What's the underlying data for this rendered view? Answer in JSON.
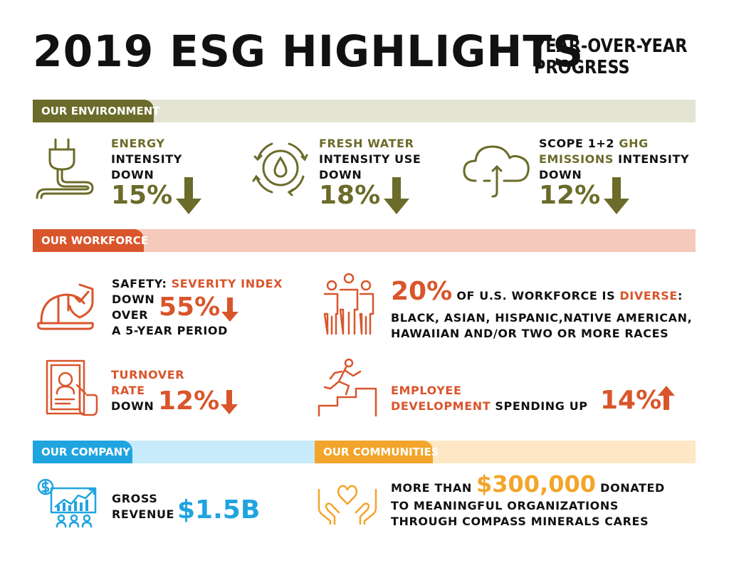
{
  "header": {
    "title": "2019 ESG HIGHLIGHTS",
    "subtitle_line1": "YEAR-OVER-YEAR",
    "subtitle_line2": "PROGRESS"
  },
  "colors": {
    "environment": "#6b6b2a",
    "environment_light": "#e3e4d2",
    "workforce": "#d9552b",
    "workforce_light": "#f5c9bb",
    "company": "#1fa4e0",
    "company_light": "#c7ebfa",
    "communities": "#f2a52a",
    "communities_light": "#fde7c4"
  },
  "environment": {
    "label": "OUR ENVIRONMENT",
    "energy": {
      "line1": "ENERGY",
      "line2": "INTENSITY",
      "line3": "DOWN",
      "value": "15%",
      "icon": "plug-icon"
    },
    "water": {
      "line1": "FRESH WATER",
      "line2": "INTENSITY USE",
      "line3": "DOWN",
      "value": "18%",
      "icon": "water-cycle-icon"
    },
    "ghg": {
      "line1a": "SCOPE 1+2 ",
      "line1b": "GHG",
      "line2a": "EMISSIONS",
      "line2b": " INTENSITY",
      "line3": "DOWN",
      "value": "12%",
      "icon": "cloud-icon"
    }
  },
  "workforce": {
    "label": "OUR WORKFORCE",
    "safety": {
      "line1a": "SAFETY: ",
      "line1b": "SEVERITY INDEX",
      "line2": "DOWN",
      "line3": "OVER",
      "line4": "A 5-YEAR PERIOD",
      "value": "55%",
      "icon": "hardhat-icon"
    },
    "diverse": {
      "value": "20%",
      "line1a": " OF U.S. WORKFORCE IS ",
      "line1b": "DIVERSE",
      "line1c": ":",
      "line2": "BLACK, ASIAN, HISPANIC,NATIVE AMERICAN,",
      "line3": "HAWAIIAN AND/OR TWO OR MORE RACES",
      "icon": "people-icon"
    },
    "turnover": {
      "line1": "TURNOVER",
      "line2": "RATE",
      "line3": "DOWN",
      "value": "12%",
      "icon": "resume-icon"
    },
    "development": {
      "line1": "EMPLOYEE",
      "line2a": "DEVELOPMENT",
      "line2b": " SPENDING UP",
      "value": "14%",
      "icon": "stairs-runner-icon"
    }
  },
  "company": {
    "label": "OUR COMPANY",
    "line1": "GROSS",
    "line2": "REVENUE",
    "value": "$1.5B",
    "icon": "revenue-chart-icon"
  },
  "communities": {
    "label": "OUR COMMUNITIES",
    "line1a": "MORE THAN ",
    "value": "$300,000",
    "line1b": " DONATED",
    "line2": "TO MEANINGFUL ORGANIZATIONS",
    "line3": "THROUGH COMPASS MINERALS CARES",
    "icon": "heart-hands-icon"
  }
}
